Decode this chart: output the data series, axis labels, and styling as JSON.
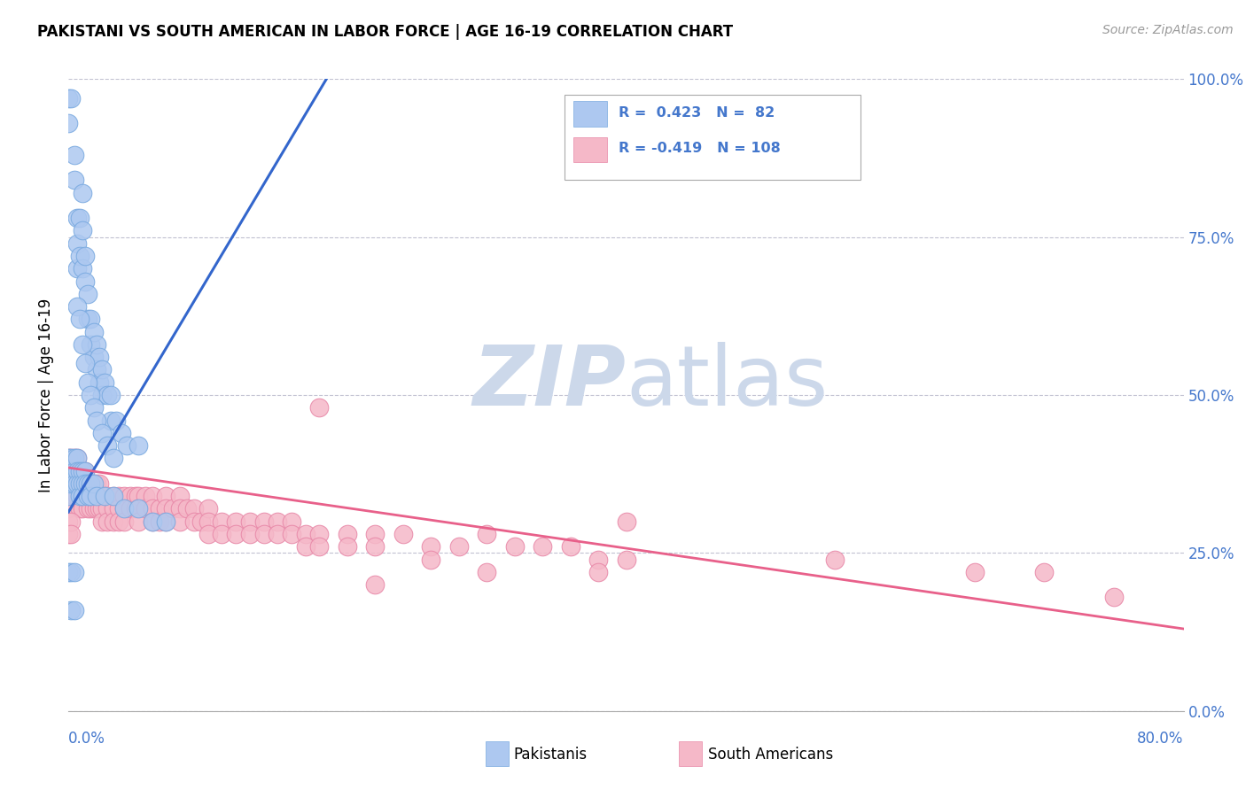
{
  "title": "PAKISTANI VS SOUTH AMERICAN IN LABOR FORCE | AGE 16-19 CORRELATION CHART",
  "source": "Source: ZipAtlas.com",
  "ylabel": "In Labor Force | Age 16-19",
  "xlim": [
    0.0,
    0.8
  ],
  "ylim": [
    0.0,
    1.0
  ],
  "pakistani_color": "#adc8f0",
  "pakistani_edge": "#7aaae0",
  "south_american_color": "#f5b8c8",
  "south_american_edge": "#e888a8",
  "pakistani_line_color": "#3366cc",
  "south_american_line_color": "#e8608a",
  "watermark_color": "#ccd8ea",
  "ytick_color": "#4477cc",
  "xtick_color": "#4477cc",
  "pak_line_x0": 0.0,
  "pak_line_y0": 0.315,
  "pak_line_x1": 0.185,
  "pak_line_y1": 1.0,
  "sa_line_x0": 0.0,
  "sa_line_y0": 0.385,
  "sa_line_x1": 0.8,
  "sa_line_y1": 0.13,
  "pakistani_scatter": [
    [
      0.0,
      0.97
    ],
    [
      0.0,
      0.93
    ],
    [
      0.002,
      0.97
    ],
    [
      0.004,
      0.88
    ],
    [
      0.004,
      0.84
    ],
    [
      0.006,
      0.78
    ],
    [
      0.006,
      0.74
    ],
    [
      0.006,
      0.7
    ],
    [
      0.008,
      0.78
    ],
    [
      0.008,
      0.72
    ],
    [
      0.01,
      0.82
    ],
    [
      0.01,
      0.76
    ],
    [
      0.01,
      0.7
    ],
    [
      0.012,
      0.72
    ],
    [
      0.012,
      0.68
    ],
    [
      0.014,
      0.66
    ],
    [
      0.014,
      0.62
    ],
    [
      0.016,
      0.62
    ],
    [
      0.016,
      0.58
    ],
    [
      0.018,
      0.6
    ],
    [
      0.018,
      0.56
    ],
    [
      0.02,
      0.58
    ],
    [
      0.02,
      0.54
    ],
    [
      0.022,
      0.56
    ],
    [
      0.022,
      0.52
    ],
    [
      0.024,
      0.54
    ],
    [
      0.024,
      0.5
    ],
    [
      0.026,
      0.52
    ],
    [
      0.028,
      0.5
    ],
    [
      0.03,
      0.5
    ],
    [
      0.03,
      0.46
    ],
    [
      0.034,
      0.46
    ],
    [
      0.038,
      0.44
    ],
    [
      0.042,
      0.42
    ],
    [
      0.05,
      0.42
    ],
    [
      0.006,
      0.64
    ],
    [
      0.008,
      0.62
    ],
    [
      0.01,
      0.58
    ],
    [
      0.012,
      0.55
    ],
    [
      0.014,
      0.52
    ],
    [
      0.016,
      0.5
    ],
    [
      0.018,
      0.48
    ],
    [
      0.02,
      0.46
    ],
    [
      0.024,
      0.44
    ],
    [
      0.028,
      0.42
    ],
    [
      0.032,
      0.4
    ],
    [
      0.0,
      0.4
    ],
    [
      0.0,
      0.38
    ],
    [
      0.0,
      0.36
    ],
    [
      0.0,
      0.34
    ],
    [
      0.002,
      0.4
    ],
    [
      0.002,
      0.38
    ],
    [
      0.002,
      0.36
    ],
    [
      0.004,
      0.4
    ],
    [
      0.004,
      0.38
    ],
    [
      0.004,
      0.36
    ],
    [
      0.006,
      0.4
    ],
    [
      0.006,
      0.38
    ],
    [
      0.006,
      0.36
    ],
    [
      0.008,
      0.38
    ],
    [
      0.008,
      0.36
    ],
    [
      0.008,
      0.34
    ],
    [
      0.01,
      0.38
    ],
    [
      0.01,
      0.36
    ],
    [
      0.01,
      0.34
    ],
    [
      0.012,
      0.38
    ],
    [
      0.012,
      0.36
    ],
    [
      0.014,
      0.36
    ],
    [
      0.014,
      0.34
    ],
    [
      0.016,
      0.36
    ],
    [
      0.016,
      0.34
    ],
    [
      0.018,
      0.36
    ],
    [
      0.02,
      0.34
    ],
    [
      0.026,
      0.34
    ],
    [
      0.032,
      0.34
    ],
    [
      0.04,
      0.32
    ],
    [
      0.05,
      0.32
    ],
    [
      0.06,
      0.3
    ],
    [
      0.07,
      0.3
    ],
    [
      0.0,
      0.22
    ],
    [
      0.002,
      0.22
    ],
    [
      0.004,
      0.22
    ],
    [
      0.002,
      0.16
    ],
    [
      0.004,
      0.16
    ]
  ],
  "south_american_scatter": [
    [
      0.0,
      0.4
    ],
    [
      0.0,
      0.38
    ],
    [
      0.0,
      0.36
    ],
    [
      0.0,
      0.34
    ],
    [
      0.0,
      0.32
    ],
    [
      0.002,
      0.4
    ],
    [
      0.002,
      0.38
    ],
    [
      0.002,
      0.36
    ],
    [
      0.002,
      0.34
    ],
    [
      0.004,
      0.4
    ],
    [
      0.004,
      0.38
    ],
    [
      0.004,
      0.36
    ],
    [
      0.004,
      0.34
    ],
    [
      0.006,
      0.4
    ],
    [
      0.006,
      0.38
    ],
    [
      0.006,
      0.36
    ],
    [
      0.006,
      0.34
    ],
    [
      0.008,
      0.38
    ],
    [
      0.008,
      0.36
    ],
    [
      0.008,
      0.34
    ],
    [
      0.008,
      0.32
    ],
    [
      0.01,
      0.38
    ],
    [
      0.01,
      0.36
    ],
    [
      0.01,
      0.34
    ],
    [
      0.01,
      0.32
    ],
    [
      0.012,
      0.38
    ],
    [
      0.012,
      0.36
    ],
    [
      0.012,
      0.34
    ],
    [
      0.014,
      0.36
    ],
    [
      0.014,
      0.34
    ],
    [
      0.014,
      0.32
    ],
    [
      0.016,
      0.36
    ],
    [
      0.016,
      0.34
    ],
    [
      0.016,
      0.32
    ],
    [
      0.018,
      0.36
    ],
    [
      0.018,
      0.34
    ],
    [
      0.018,
      0.32
    ],
    [
      0.02,
      0.36
    ],
    [
      0.02,
      0.34
    ],
    [
      0.02,
      0.32
    ],
    [
      0.022,
      0.36
    ],
    [
      0.022,
      0.34
    ],
    [
      0.022,
      0.32
    ],
    [
      0.024,
      0.34
    ],
    [
      0.024,
      0.32
    ],
    [
      0.024,
      0.3
    ],
    [
      0.028,
      0.34
    ],
    [
      0.028,
      0.32
    ],
    [
      0.028,
      0.3
    ],
    [
      0.032,
      0.34
    ],
    [
      0.032,
      0.32
    ],
    [
      0.032,
      0.3
    ],
    [
      0.036,
      0.34
    ],
    [
      0.036,
      0.32
    ],
    [
      0.036,
      0.3
    ],
    [
      0.04,
      0.34
    ],
    [
      0.04,
      0.32
    ],
    [
      0.04,
      0.3
    ],
    [
      0.044,
      0.34
    ],
    [
      0.044,
      0.32
    ],
    [
      0.048,
      0.34
    ],
    [
      0.048,
      0.32
    ],
    [
      0.05,
      0.34
    ],
    [
      0.05,
      0.32
    ],
    [
      0.05,
      0.3
    ],
    [
      0.055,
      0.34
    ],
    [
      0.055,
      0.32
    ],
    [
      0.06,
      0.34
    ],
    [
      0.06,
      0.32
    ],
    [
      0.06,
      0.3
    ],
    [
      0.065,
      0.32
    ],
    [
      0.065,
      0.3
    ],
    [
      0.07,
      0.34
    ],
    [
      0.07,
      0.32
    ],
    [
      0.07,
      0.3
    ],
    [
      0.075,
      0.32
    ],
    [
      0.08,
      0.34
    ],
    [
      0.08,
      0.32
    ],
    [
      0.08,
      0.3
    ],
    [
      0.085,
      0.32
    ],
    [
      0.09,
      0.32
    ],
    [
      0.09,
      0.3
    ],
    [
      0.095,
      0.3
    ],
    [
      0.1,
      0.32
    ],
    [
      0.1,
      0.3
    ],
    [
      0.1,
      0.28
    ],
    [
      0.11,
      0.3
    ],
    [
      0.11,
      0.28
    ],
    [
      0.12,
      0.3
    ],
    [
      0.12,
      0.28
    ],
    [
      0.13,
      0.3
    ],
    [
      0.13,
      0.28
    ],
    [
      0.14,
      0.3
    ],
    [
      0.14,
      0.28
    ],
    [
      0.15,
      0.3
    ],
    [
      0.15,
      0.28
    ],
    [
      0.16,
      0.3
    ],
    [
      0.16,
      0.28
    ],
    [
      0.17,
      0.28
    ],
    [
      0.17,
      0.26
    ],
    [
      0.18,
      0.28
    ],
    [
      0.18,
      0.26
    ],
    [
      0.2,
      0.28
    ],
    [
      0.2,
      0.26
    ],
    [
      0.22,
      0.28
    ],
    [
      0.22,
      0.26
    ],
    [
      0.24,
      0.28
    ],
    [
      0.26,
      0.26
    ],
    [
      0.28,
      0.26
    ],
    [
      0.3,
      0.28
    ],
    [
      0.32,
      0.26
    ],
    [
      0.34,
      0.26
    ],
    [
      0.36,
      0.26
    ],
    [
      0.38,
      0.24
    ],
    [
      0.4,
      0.24
    ],
    [
      0.0,
      0.3
    ],
    [
      0.0,
      0.28
    ],
    [
      0.002,
      0.3
    ],
    [
      0.002,
      0.28
    ],
    [
      0.18,
      0.48
    ],
    [
      0.4,
      0.3
    ],
    [
      0.55,
      0.24
    ],
    [
      0.65,
      0.22
    ],
    [
      0.7,
      0.22
    ],
    [
      0.75,
      0.18
    ],
    [
      0.3,
      0.22
    ],
    [
      0.22,
      0.2
    ],
    [
      0.26,
      0.24
    ],
    [
      0.38,
      0.22
    ]
  ]
}
